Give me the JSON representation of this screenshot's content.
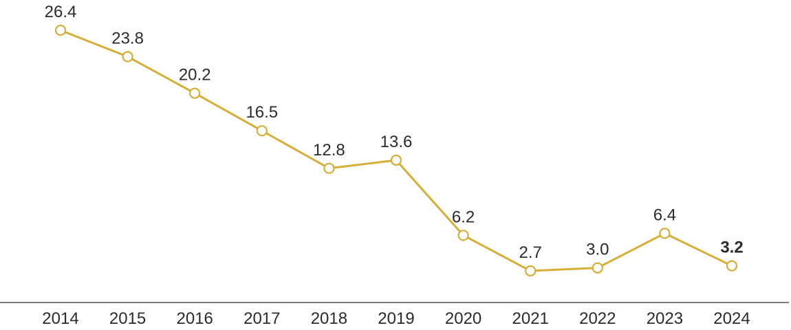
{
  "chart_data": {
    "type": "line",
    "title": "",
    "xlabel": "",
    "ylabel": "",
    "categories": [
      "2014",
      "2015",
      "2016",
      "2017",
      "2018",
      "2019",
      "2020",
      "2021",
      "2022",
      "2023",
      "2024"
    ],
    "series": [
      {
        "values": [
          26.4,
          23.8,
          20.2,
          16.5,
          12.8,
          13.6,
          6.2,
          2.7,
          3.0,
          6.4,
          3.2
        ],
        "labels": [
          "26.4",
          "23.8",
          "20.2",
          "16.5",
          "12.8",
          "13.6",
          "6.2",
          "2.7",
          "3.0",
          "6.4",
          "3.2"
        ],
        "color": "#d6ae35",
        "marker": "hollow-circle",
        "emphasized_label_index": 10
      }
    ],
    "ylim": [
      0,
      27
    ],
    "grid": false,
    "legend": "none",
    "colors": {
      "line": "#d6ae35",
      "marker_fill": "#ffffff",
      "axis": "#2b2b2b",
      "text": "#2b2b2b"
    }
  }
}
